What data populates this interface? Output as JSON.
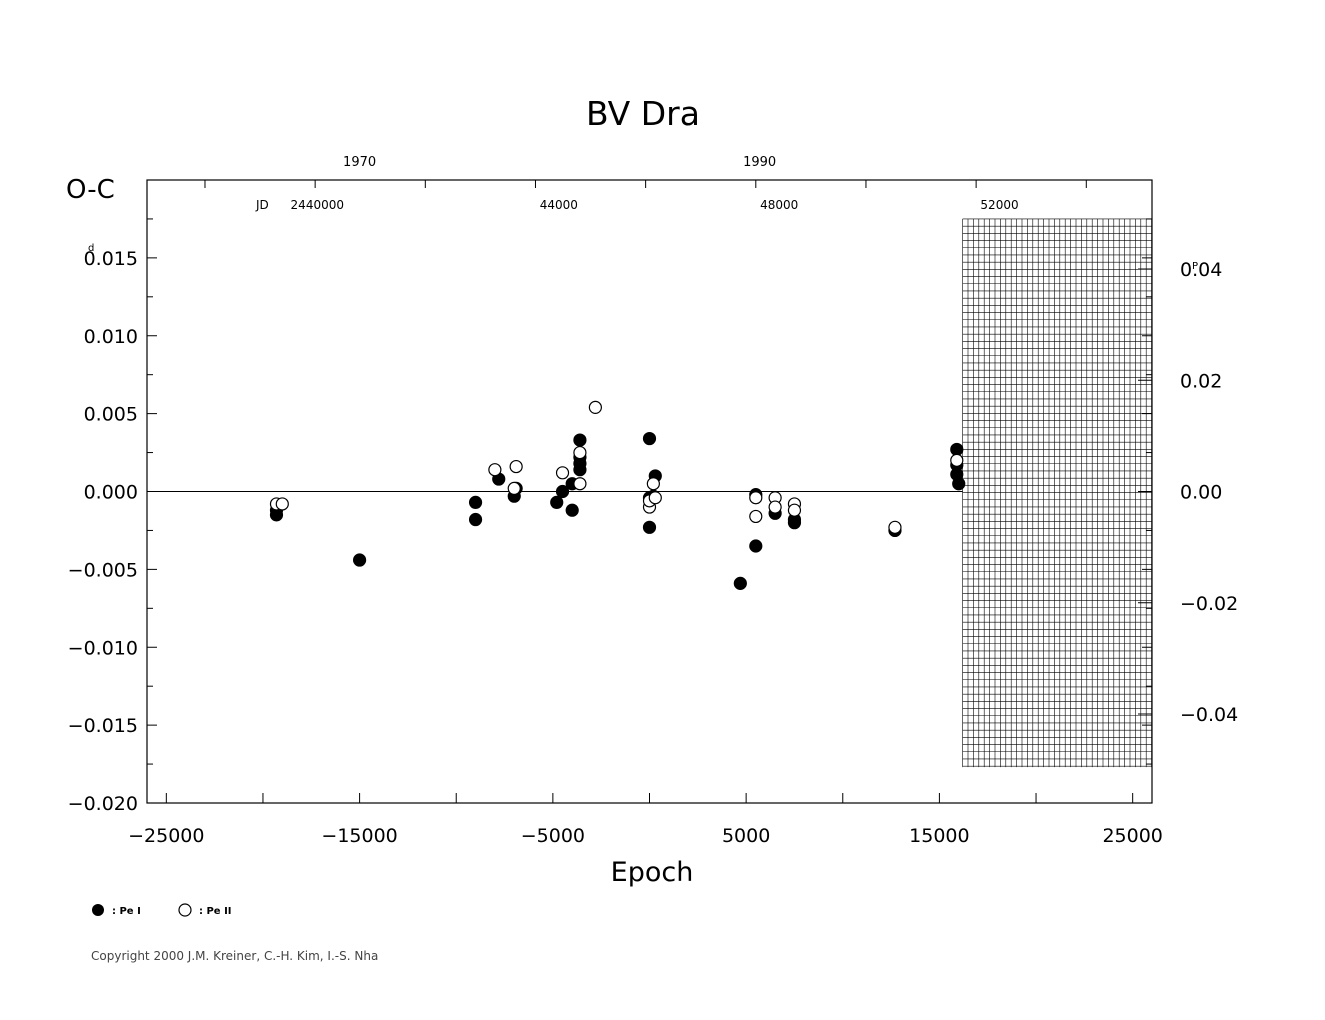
{
  "chart_data": {
    "type": "scatter",
    "title": "BV  Dra",
    "ylabel": "O-C",
    "ylabel_unit": "d",
    "xlabel": "Epoch",
    "xlim": [
      -26000,
      26000
    ],
    "ylim": [
      -0.02,
      0.02
    ],
    "x_ticks": [
      -25000,
      -15000,
      -5000,
      5000,
      15000,
      25000
    ],
    "x_tick_labels": [
      "−25000",
      "−15000",
      "−5000",
      "5000",
      "15000",
      "25000"
    ],
    "y_ticks": [
      -0.02,
      -0.015,
      -0.01,
      -0.005,
      0.0,
      0.005,
      0.01,
      0.015
    ],
    "y_tick_labels": [
      "−0.020",
      "−0.015",
      "−0.010",
      "−0.005",
      "0.000",
      "0.005",
      "0.010",
      "0.015"
    ],
    "right_axis": {
      "unit": "P",
      "ticks": [
        0.04,
        0.02,
        0.0,
        -0.02,
        -0.04
      ],
      "tick_labels": [
        "0.04",
        "0.02",
        "0.00",
        "−0.02",
        "−0.04"
      ],
      "scale_per_y": 2.8
    },
    "top_year_axis": {
      "ticks": [
        {
          "epoch": -15000,
          "label": "1970"
        },
        {
          "epoch": 5700,
          "label": "1990"
        }
      ]
    },
    "top_jd_axis": {
      "prefix": "JD",
      "ticks": [
        {
          "epoch": -17500,
          "label": "2440000"
        },
        {
          "epoch": -5000,
          "label": "44000"
        },
        {
          "epoch": 6400,
          "label": "48000"
        },
        {
          "epoch": 17800,
          "label": "52000"
        }
      ]
    },
    "hatched_region": {
      "x_from": 16200,
      "x_to": 26000
    },
    "series": [
      {
        "name": ": Pe I",
        "marker": "filled",
        "points": [
          [
            -19300,
            -0.0012
          ],
          [
            -19300,
            -0.0015
          ],
          [
            -15000,
            -0.0044
          ],
          [
            -9000,
            -0.0007
          ],
          [
            -9000,
            -0.0018
          ],
          [
            -7800,
            0.0008
          ],
          [
            -7000,
            -0.0003
          ],
          [
            -6900,
            0.0002
          ],
          [
            -4800,
            -0.0007
          ],
          [
            -4500,
            0.0
          ],
          [
            -4000,
            0.0005
          ],
          [
            -4000,
            -0.0012
          ],
          [
            -3600,
            0.0033
          ],
          [
            -3600,
            0.0022
          ],
          [
            -3600,
            0.0018
          ],
          [
            -3600,
            0.0014
          ],
          [
            0,
            0.0034
          ],
          [
            0,
            -0.0004
          ],
          [
            0,
            -0.0023
          ],
          [
            200,
            -0.0003
          ],
          [
            300,
            0.001
          ],
          [
            4700,
            -0.0059
          ],
          [
            5500,
            -0.0002
          ],
          [
            5500,
            -0.0035
          ],
          [
            6500,
            -0.0014
          ],
          [
            7500,
            -0.0018
          ],
          [
            7500,
            -0.002
          ],
          [
            12700,
            -0.0025
          ],
          [
            15900,
            0.0027
          ],
          [
            15900,
            0.0017
          ],
          [
            15900,
            0.0011
          ],
          [
            16000,
            0.0005
          ]
        ]
      },
      {
        "name": ": Pe II",
        "marker": "open",
        "points": [
          [
            -19300,
            -0.0008
          ],
          [
            -19000,
            -0.0008
          ],
          [
            -8000,
            0.0014
          ],
          [
            -7000,
            0.0002
          ],
          [
            -6900,
            0.0016
          ],
          [
            -4500,
            0.0012
          ],
          [
            -3600,
            0.0025
          ],
          [
            -3600,
            0.0005
          ],
          [
            -2800,
            0.0054
          ],
          [
            0,
            -0.001
          ],
          [
            0,
            -0.0006
          ],
          [
            200,
            0.0005
          ],
          [
            300,
            -0.0004
          ],
          [
            5500,
            -0.0004
          ],
          [
            5500,
            -0.0016
          ],
          [
            6500,
            -0.0004
          ],
          [
            6500,
            -0.001
          ],
          [
            7500,
            -0.0008
          ],
          [
            7500,
            -0.0012
          ],
          [
            12700,
            -0.0023
          ],
          [
            15900,
            0.002
          ]
        ]
      }
    ]
  },
  "legend": {
    "filled_label": ": Pe I",
    "open_label": ": Pe II"
  },
  "footer": {
    "copyright": "Copyright 2000 J.M. Kreiner, C.-H. Kim, I.-S. Nha"
  }
}
